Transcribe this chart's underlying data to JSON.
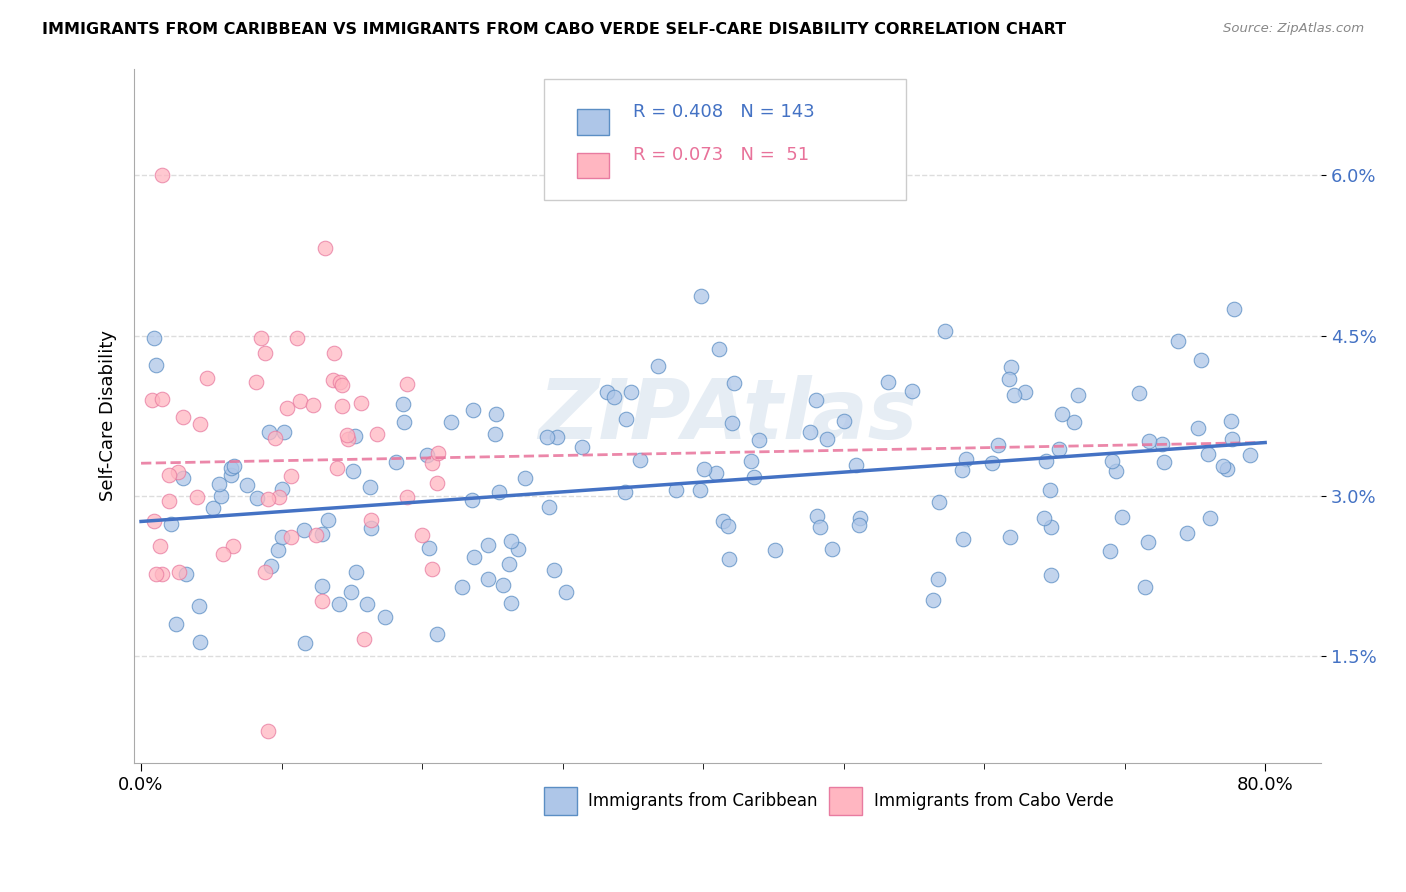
{
  "title": "IMMIGRANTS FROM CARIBBEAN VS IMMIGRANTS FROM CABO VERDE SELF-CARE DISABILITY CORRELATION CHART",
  "source": "Source: ZipAtlas.com",
  "ylabel": "Self-Care Disability",
  "y_tick_vals": [
    0.015,
    0.03,
    0.045,
    0.06
  ],
  "y_tick_labels": [
    "1.5%",
    "3.0%",
    "4.5%",
    "6.0%"
  ],
  "x_tick_vals": [
    0.0,
    0.8
  ],
  "x_tick_labels": [
    "0.0%",
    "80.0%"
  ],
  "xlim": [
    -0.005,
    0.84
  ],
  "ylim": [
    0.005,
    0.07
  ],
  "caribbean_R": 0.408,
  "caribbean_N": 143,
  "caboverde_R": 0.073,
  "caboverde_N": 51,
  "caribbean_color": "#AEC6E8",
  "caboverde_color": "#FFB6C1",
  "caribbean_edge_color": "#5B8EC4",
  "caboverde_edge_color": "#E87BA0",
  "caribbean_line_color": "#4472C4",
  "caboverde_line_color": "#E8729A",
  "caboverde_dash_color": "#BBBBBB",
  "watermark_color": "#C8D8E8",
  "legend_label_caribbean": "Immigrants from Caribbean",
  "legend_label_caboverde": "Immigrants from Cabo Verde",
  "grid_color": "#DDDDDD",
  "seed": 42
}
